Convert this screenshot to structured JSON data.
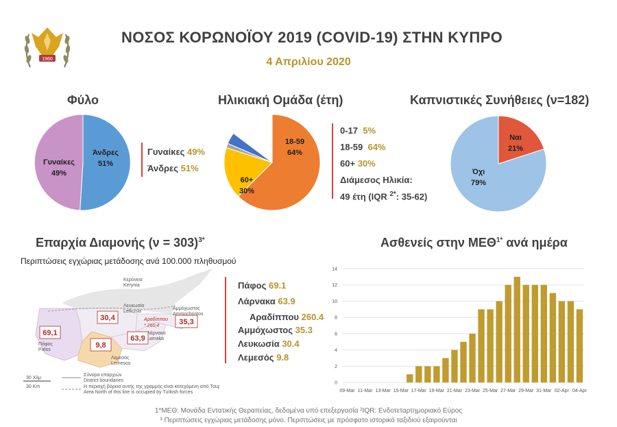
{
  "header": {
    "title": "ΝΟΣΟΣ ΚΟΡΩΝΟΪΟΥ 2019 (COVID-19) ΣΤΗΝ ΚΥΠΡΟ",
    "date": "4 Απριλίου 2020",
    "logo_year": "1960"
  },
  "gender": {
    "title": "Φύλο",
    "legend": [
      {
        "label": "Γυναίκες",
        "value": "49%"
      },
      {
        "label": "Άνδρες",
        "value": "51%"
      }
    ]
  },
  "age": {
    "title": "Ηλικιακή Ομάδα (έτη)",
    "legend": [
      {
        "label": "0-17",
        "value": "5%"
      },
      {
        "label": "18-59",
        "value": "64%"
      },
      {
        "label": "60+",
        "value": "30%"
      }
    ],
    "median_label": "Διάμεσος Ηλικία:",
    "median_value": "49 έτη (IQR ",
    "median_sup": "2*",
    "median_tail": ": 35-62)"
  },
  "smoking": {
    "title": "Καπνιστικές Συνήθειες (ν=182)"
  },
  "district": {
    "title": "Επαρχία Διαμονής (ν = 303)",
    "title_sup": "3*",
    "subtitle": "Περιπτώσεις εγχώριας μετάδοσης ανά 100.000 πληθυσμού",
    "legend": [
      {
        "label": "Πάφος",
        "value": "69.1"
      },
      {
        "label": "Λάρνακα",
        "value": "63.9"
      },
      {
        "label": "Αραδίππου",
        "value": "260.4"
      },
      {
        "label": "Αμμόχωστος",
        "value": "35.3"
      },
      {
        "label": "Λευκωσία",
        "value": "30.4"
      },
      {
        "label": "Λεμεσός",
        "value": "9.8"
      }
    ],
    "map": {
      "values": {
        "pafos": "69,1",
        "lefkosia": "30,4",
        "larnaka": "63,9",
        "lemesos": "9,8",
        "ammochostos": "35,3",
        "aradippou": "260,4"
      },
      "aradippou_name": "Αραδίππου",
      "cities": {
        "kyrenia": [
          "Κερύνεια",
          "Kerynia"
        ],
        "lefkosia": [
          "Λευκωσία",
          "Lefkosia"
        ],
        "ammochostos": [
          "Αμμόχωστος",
          "Ammochostos"
        ],
        "larnaka": [
          "Λάρνακα",
          "Lamaka"
        ],
        "pafos": [
          "Πάφος",
          "Pafos"
        ],
        "lemesos": [
          "Λεμεσός",
          "Lemesos"
        ]
      },
      "scale_gr": "30 Χλμ",
      "scale_en": "30 Km",
      "legend_boundary_gr": "Σύνορα επαρχιών",
      "legend_boundary_en": "District boundaries",
      "legend_north_gr": "Η περιοχή βόρεια αυτής της γραμμής είναι κατεχόμενη από Τουρκικά στρατεύματα",
      "legend_north_en": "Area North of this line is occupied by Turkish forces"
    }
  },
  "icu": {
    "title": "Ασθενείς στην ΜΕΘ",
    "title_sup": "1*",
    "title_tail": "ανά ημέρα"
  },
  "footnotes": {
    "line1": "1*ΜΕΘ: Μονάδα Εντατικής Θεραπείας, δεδομένα υπό επεξεργασία ²IQR: Ενδοτεταρτημοριακό Εύρος",
    "line2": "³ Περιπτώσεις εγχώριας μετάδοσης μόνο. Περιπτώσεις με πρόσφατο ιστορικό ταξιδιού εξαιρούνται"
  },
  "colors": {
    "gold": "#b7952b",
    "red": "#d9403a",
    "blue": "#5b9bd5",
    "pink": "#c893c6",
    "orange": "#ed7d31",
    "yellow": "#ffc000",
    "gray": "#a5a5a5",
    "dark_blue": "#4472c4",
    "light_blue": "#9dc3e6",
    "icu_bar": "#bf9b30"
  },
  "chart_data": [
    {
      "type": "pie",
      "title": "Φύλο",
      "labels": [
        "Άνδρες",
        "Γυναίκες"
      ],
      "values": [
        51,
        49
      ],
      "value_labels": [
        "51%",
        "49%"
      ],
      "colors": [
        "#5b9bd5",
        "#c893c6"
      ]
    },
    {
      "type": "pie",
      "title": "Ηλικιακή Ομάδα (έτη)",
      "labels": [
        "18-59",
        "60+",
        "",
        "0-17"
      ],
      "values": [
        64,
        30,
        1,
        5
      ],
      "value_labels": [
        "64%",
        "30%",
        "",
        ""
      ],
      "colors": [
        "#ed7d31",
        "#ffc000",
        "#a5a5a5",
        "#4472c4"
      ]
    },
    {
      "type": "pie",
      "title": "Καπνιστικές Συνήθειες (ν=182)",
      "labels": [
        "Ναι",
        "Όχι"
      ],
      "values": [
        21,
        79
      ],
      "value_labels": [
        "21%",
        "79%"
      ],
      "colors": [
        "#e0573b",
        "#9dc3e6"
      ]
    },
    {
      "type": "bar",
      "title": "Ασθενείς στην ΜΕΘ ανά ημέρα",
      "categories": [
        "09-Mar",
        "10-Mar",
        "11-Mar",
        "12-Mar",
        "13-Mar",
        "14-Mar",
        "15-Mar",
        "16-Mar",
        "17-Mar",
        "18-Mar",
        "19-Mar",
        "20-Mar",
        "21-Mar",
        "22-Mar",
        "23-Mar",
        "24-Mar",
        "25-Mar",
        "26-Mar",
        "27-Mar",
        "28-Mar",
        "29-Mar",
        "30-Mar",
        "31-Mar",
        "01-Apr",
        "02-Apr",
        "03-Apr",
        "04-Apr"
      ],
      "tick_labels": [
        "09-Mar",
        "11-Mar",
        "13-Mar",
        "15-Mar",
        "17-Mar",
        "19-Mar",
        "21-Mar",
        "23-Mar",
        "25-Mar",
        "27-Mar",
        "29-Mar",
        "31-Mar",
        "02-Apr",
        "04-Apr"
      ],
      "values": [
        0,
        0,
        0,
        0,
        0,
        0,
        0,
        1,
        2,
        2,
        2,
        3,
        4,
        5,
        6,
        9,
        9,
        10,
        12,
        13,
        12,
        12,
        12,
        11,
        10,
        10,
        9
      ],
      "ylim": [
        0,
        14
      ],
      "yticks": [
        0,
        2,
        4,
        6,
        8,
        10,
        12,
        14
      ],
      "grid": true,
      "color": "#bf9b30"
    }
  ]
}
